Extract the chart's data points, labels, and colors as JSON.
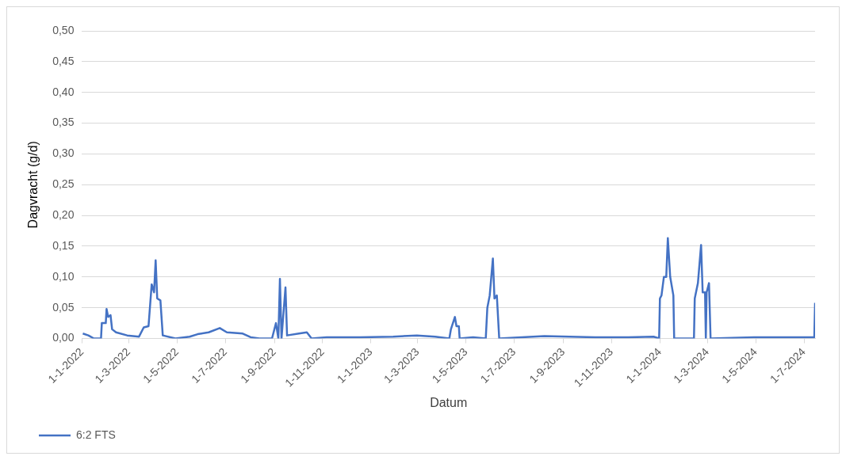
{
  "chart_data": {
    "type": "line",
    "xlabel": "Datum",
    "ylabel": "Dagvracht (g/d)",
    "x": [
      "2022-01-02",
      "2022-01-09",
      "2022-01-16",
      "2022-01-25",
      "2022-01-26",
      "2022-01-31",
      "2022-02-01",
      "2022-02-03",
      "2022-02-06",
      "2022-02-08",
      "2022-02-13",
      "2022-02-27",
      "2022-03-14",
      "2022-03-20",
      "2022-03-26",
      "2022-03-30",
      "2022-04-02",
      "2022-04-04",
      "2022-04-06",
      "2022-04-10",
      "2022-04-13",
      "2022-04-29",
      "2022-05-17",
      "2022-05-27",
      "2022-06-10",
      "2022-06-24",
      "2022-07-03",
      "2022-07-23",
      "2022-08-02",
      "2022-08-13",
      "2022-08-29",
      "2022-09-03",
      "2022-09-06",
      "2022-09-08",
      "2022-09-10",
      "2022-09-15",
      "2022-09-17",
      "2022-10-02",
      "2022-10-12",
      "2022-10-18",
      "2022-11-06",
      "2022-12-18",
      "2023-01-29",
      "2023-02-28",
      "2023-03-23",
      "2023-04-10",
      "2023-04-12",
      "2023-04-17",
      "2023-04-19",
      "2023-04-22",
      "2023-04-23",
      "2023-05-10",
      "2023-05-26",
      "2023-05-28",
      "2023-05-31",
      "2023-06-04",
      "2023-06-06",
      "2023-06-09",
      "2023-06-12",
      "2023-08-08",
      "2023-10-11",
      "2023-11-22",
      "2023-12-24",
      "2023-12-31",
      "2024-01-01",
      "2024-01-03",
      "2024-01-06",
      "2024-01-09",
      "2024-01-11",
      "2024-01-14",
      "2024-01-18",
      "2024-01-19",
      "2024-02-13",
      "2024-02-14",
      "2024-02-18",
      "2024-02-22",
      "2024-02-24",
      "2024-02-27",
      "2024-02-28",
      "2024-02-29",
      "2024-03-03",
      "2024-03-05",
      "2024-04-29",
      "2024-06-21",
      "2024-07-14",
      "2024-07-15"
    ],
    "series": [
      {
        "name": "6:2 FTS",
        "color": "#4472c4",
        "values": [
          0.008,
          0.005,
          0,
          0,
          0.025,
          0.025,
          0.048,
          0.035,
          0.038,
          0.015,
          0.01,
          0.005,
          0.003,
          0.018,
          0.02,
          0.088,
          0.075,
          0.127,
          0.065,
          0.062,
          0.005,
          0,
          0.003,
          0.007,
          0.01,
          0.017,
          0.01,
          0.008,
          0.002,
          0,
          0,
          0.025,
          0,
          0.097,
          0,
          0.083,
          0.005,
          0.008,
          0.01,
          0,
          0.002,
          0.002,
          0.003,
          0.005,
          0.003,
          0,
          0.015,
          0.035,
          0.02,
          0.02,
          0,
          0.002,
          0,
          0.05,
          0.07,
          0.13,
          0.065,
          0.07,
          0,
          0.004,
          0.002,
          0.002,
          0.003,
          0,
          0.065,
          0.07,
          0.1,
          0.1,
          0.163,
          0.1,
          0.07,
          0,
          0,
          0.065,
          0.09,
          0.152,
          0.075,
          0.075,
          0,
          0.075,
          0.09,
          0,
          0.002,
          0.002,
          0.002,
          0.058
        ]
      }
    ],
    "xlim": [
      "2022-01-01",
      "2024-07-15"
    ],
    "xticks": [
      {
        "value": "2022-01-01",
        "label": "1-1-2022"
      },
      {
        "value": "2022-03-01",
        "label": "1-3-2022"
      },
      {
        "value": "2022-05-01",
        "label": "1-5-2022"
      },
      {
        "value": "2022-07-01",
        "label": "1-7-2022"
      },
      {
        "value": "2022-09-01",
        "label": "1-9-2022"
      },
      {
        "value": "2022-11-01",
        "label": "1-11-2022"
      },
      {
        "value": "2023-01-01",
        "label": "1-1-2023"
      },
      {
        "value": "2023-03-01",
        "label": "1-3-2023"
      },
      {
        "value": "2023-05-01",
        "label": "1-5-2023"
      },
      {
        "value": "2023-07-01",
        "label": "1-7-2023"
      },
      {
        "value": "2023-09-01",
        "label": "1-9-2023"
      },
      {
        "value": "2023-11-01",
        "label": "1-11-2023"
      },
      {
        "value": "2024-01-01",
        "label": "1-1-2024"
      },
      {
        "value": "2024-03-01",
        "label": "1-3-2024"
      },
      {
        "value": "2024-05-01",
        "label": "1-5-2024"
      },
      {
        "value": "2024-07-01",
        "label": "1-7-2024"
      }
    ],
    "ylim": [
      0,
      0.5
    ],
    "yticks": [
      {
        "value": 0,
        "label": "0,00"
      },
      {
        "value": 0.05,
        "label": "0,05"
      },
      {
        "value": 0.1,
        "label": "0,10"
      },
      {
        "value": 0.15,
        "label": "0,15"
      },
      {
        "value": 0.2,
        "label": "0,20"
      },
      {
        "value": 0.25,
        "label": "0,25"
      },
      {
        "value": 0.3,
        "label": "0,30"
      },
      {
        "value": 0.35,
        "label": "0,35"
      },
      {
        "value": 0.4,
        "label": "0,40"
      },
      {
        "value": 0.45,
        "label": "0,45"
      },
      {
        "value": 0.5,
        "label": "0,50"
      }
    ],
    "grid": "y",
    "legend": "bottom left",
    "marker": "none",
    "line_style": "solid"
  }
}
